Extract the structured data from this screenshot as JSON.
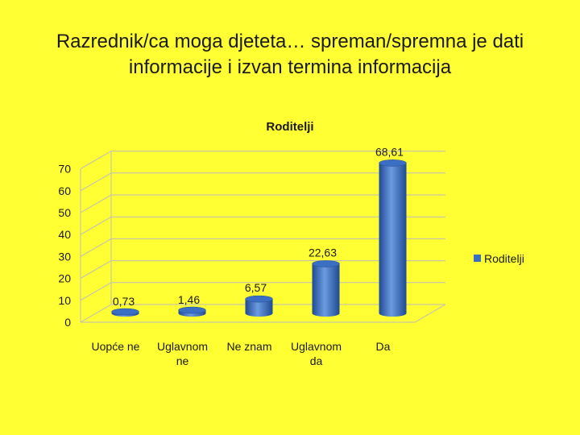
{
  "slide": {
    "title_line1": "Razrednik/ca moga djeteta… spreman/spremna je dati",
    "title_line2": "informacije i izvan termina informacija"
  },
  "chart_data": {
    "type": "bar",
    "title": "Roditelji",
    "categories": [
      [
        "Uopće ne"
      ],
      [
        "Uglavnom",
        "ne"
      ],
      [
        "Ne znam"
      ],
      [
        "Uglavnom",
        "da"
      ],
      [
        "Da"
      ]
    ],
    "series": [
      {
        "name": "Roditelji",
        "values": [
          0.73,
          1.46,
          6.57,
          22.63,
          68.61
        ],
        "labels": [
          "0,73",
          "1,46",
          "6,57",
          "22,63",
          "68,61"
        ]
      }
    ],
    "ylim": [
      0,
      70
    ],
    "yticks": [
      0,
      10,
      20,
      30,
      40,
      50,
      60,
      70
    ],
    "xlabel": "",
    "ylabel": "",
    "grid": true,
    "legend_position": "right",
    "colors": {
      "bar": "#3A6FC4",
      "bar_dark": "#1F4A94",
      "bar_light": "#6C9BE0",
      "grid": "#BDBDBD",
      "background": "#FFFF33"
    }
  }
}
